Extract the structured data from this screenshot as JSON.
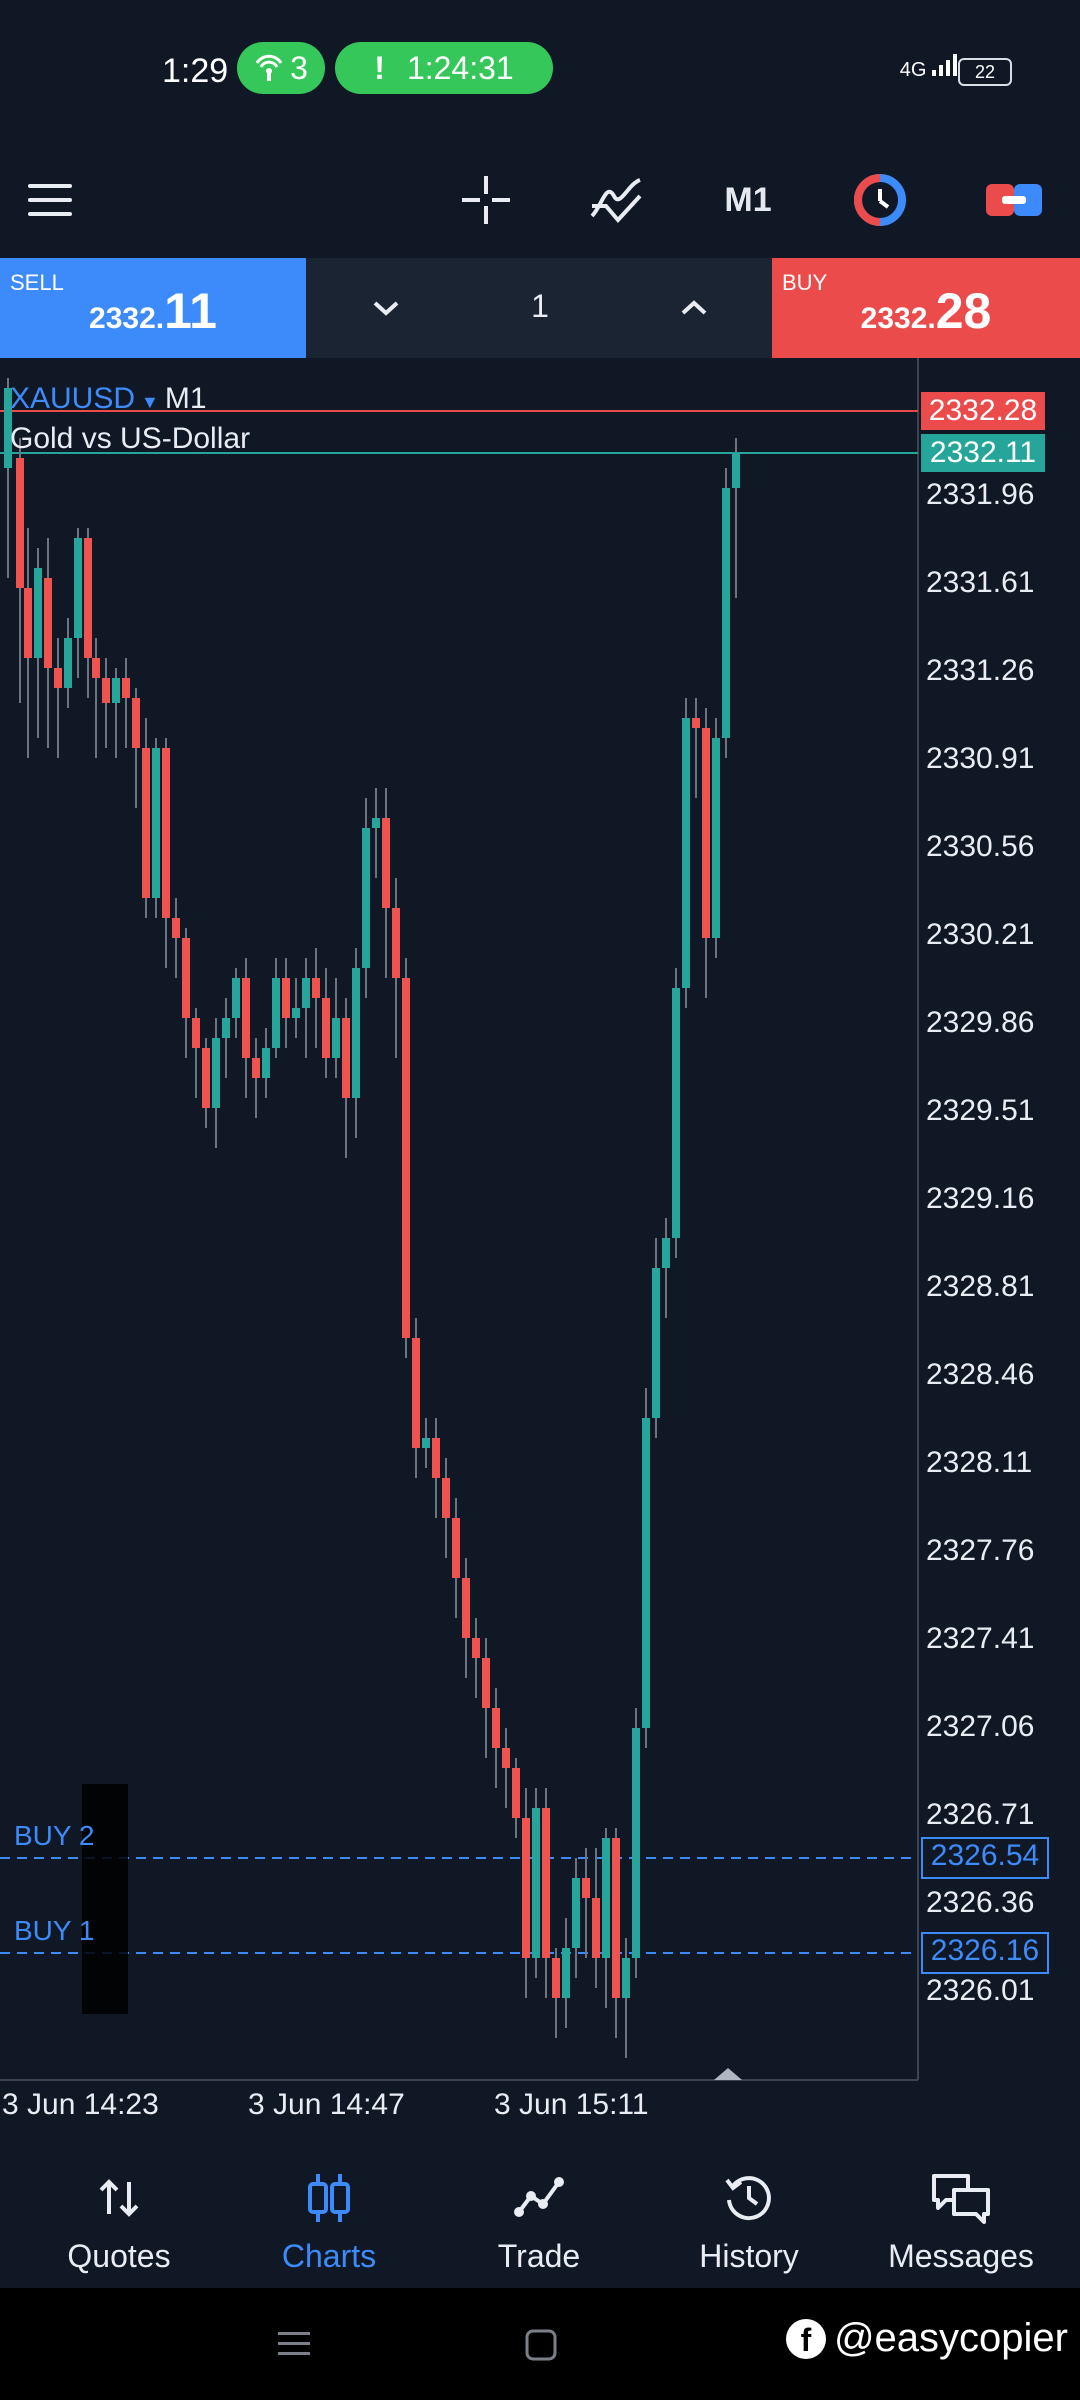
{
  "status_bar": {
    "time": "1:29",
    "hotspot_count": "3",
    "call_timer": "1:24:31",
    "network": "4G",
    "battery": "22"
  },
  "toolbar": {
    "timeframe": "M1"
  },
  "trade_bar": {
    "sell_label": "SELL",
    "sell_price_small": "2332.",
    "sell_price_big": "11",
    "lot": "1",
    "buy_label": "BUY",
    "buy_price_small": "2332.",
    "buy_price_big": "28"
  },
  "chart": {
    "symbol": "XAUUSD",
    "timeframe": "M1",
    "description": "Gold vs US-Dollar",
    "ask_tag": "2332.28",
    "bid_tag": "2332.11",
    "price_axis": [
      "2331.96",
      "2331.61",
      "2331.26",
      "2330.91",
      "2330.56",
      "2330.21",
      "2329.86",
      "2329.51",
      "2329.16",
      "2328.81",
      "2328.46",
      "2328.11",
      "2327.76",
      "2327.41",
      "2327.06",
      "2326.71",
      "2326.36",
      "2326.01"
    ],
    "orders": [
      {
        "label": "BUY 2",
        "price": "2326.54"
      },
      {
        "label": "BUY 1",
        "price": "2326.16"
      }
    ],
    "time_axis": [
      "3 Jun 14:23",
      "3 Jun 14:47",
      "3 Jun 15:11"
    ],
    "colors": {
      "up": "#26a69a",
      "down": "#ef5350",
      "buy_line": "#3d8bfa"
    }
  },
  "nav": {
    "items": [
      {
        "label": "Quotes",
        "icon": "arrows-updown-icon"
      },
      {
        "label": "Charts",
        "icon": "candles-icon"
      },
      {
        "label": "Trade",
        "icon": "trend-icon"
      },
      {
        "label": "History",
        "icon": "history-icon"
      },
      {
        "label": "Messages",
        "icon": "messages-icon"
      }
    ],
    "active": "Charts"
  },
  "watermark": "@easycopier"
}
